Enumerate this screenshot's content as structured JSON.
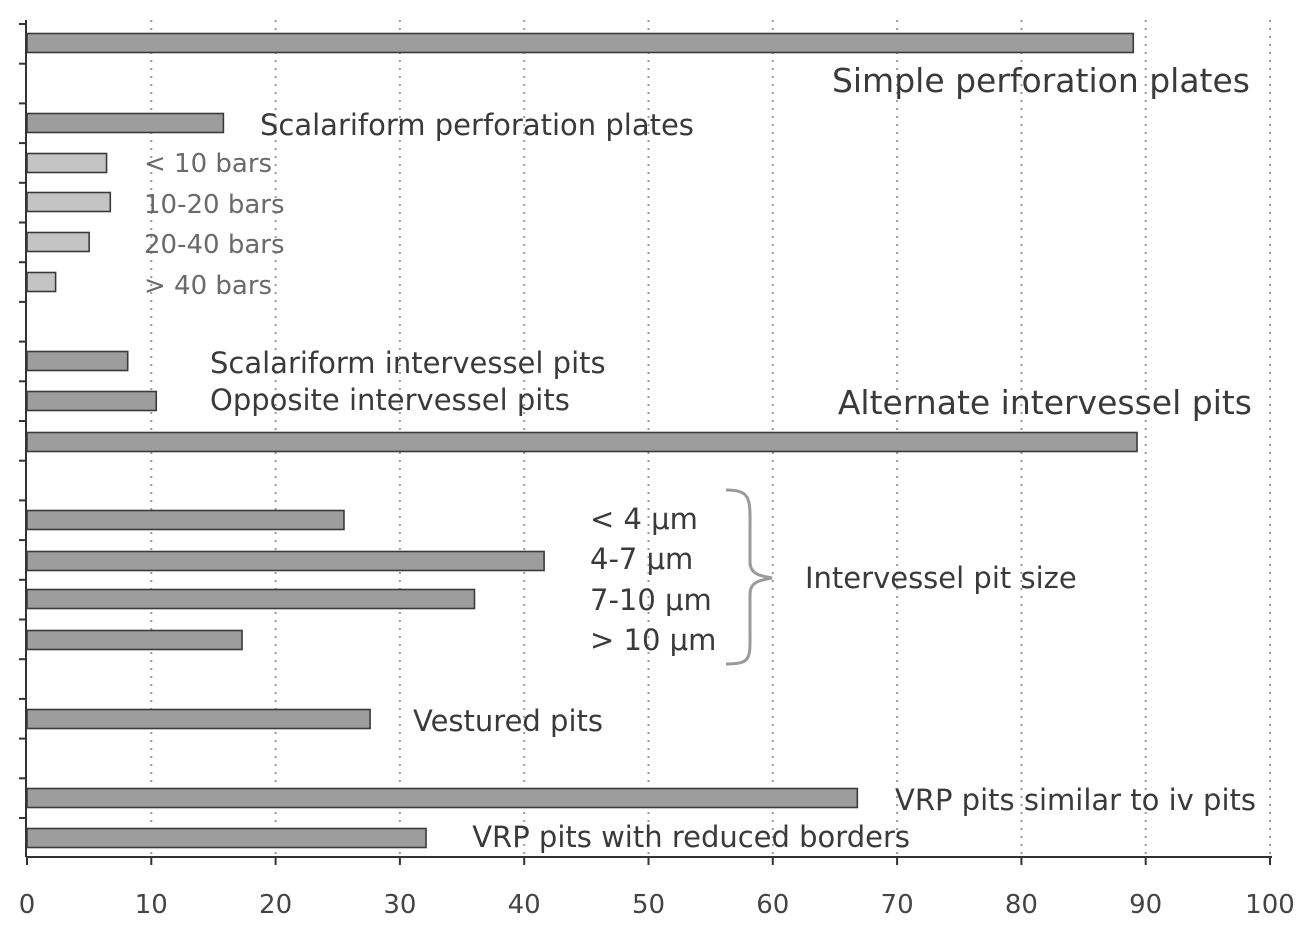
{
  "chart_data": {
    "type": "bar",
    "orientation": "horizontal",
    "xlim": [
      0,
      100
    ],
    "x_ticks": [
      0,
      10,
      20,
      30,
      40,
      50,
      60,
      70,
      80,
      90,
      100
    ],
    "grid": "vertical dotted lines at each x tick",
    "bars": [
      {
        "label": "Simple perforation plates",
        "value": 89,
        "style": "dark",
        "label_size": "big"
      },
      {
        "label": "Scalariform perforation plates",
        "value": 15.8,
        "style": "dark",
        "label_size": "mid"
      },
      {
        "label": "< 10 bars",
        "value": 6.4,
        "style": "light",
        "label_size": "small"
      },
      {
        "label": "10-20 bars",
        "value": 6.7,
        "style": "light",
        "label_size": "small"
      },
      {
        "label": "20-40 bars",
        "value": 5.0,
        "style": "light",
        "label_size": "small"
      },
      {
        "label": "> 40 bars",
        "value": 2.3,
        "style": "light",
        "label_size": "small"
      },
      {
        "label": "Scalariform intervessel pits",
        "value": 8.1,
        "style": "dark",
        "label_size": "mid"
      },
      {
        "label": "Opposite intervessel pits",
        "value": 10.4,
        "style": "dark",
        "label_size": "mid"
      },
      {
        "label": "Alternate intervessel pits",
        "value": 89.3,
        "style": "dark",
        "label_size": "big"
      },
      {
        "label": "< 4 μm",
        "value": 25.5,
        "style": "dark",
        "label_size": "mid"
      },
      {
        "label": "4-7 μm",
        "value": 41.6,
        "style": "dark",
        "label_size": "mid"
      },
      {
        "label": "7-10 μm",
        "value": 36.0,
        "style": "dark",
        "label_size": "mid"
      },
      {
        "label": "> 10 μm",
        "value": 17.3,
        "style": "dark",
        "label_size": "mid"
      },
      {
        "label": "Vestured pits",
        "value": 27.6,
        "style": "dark",
        "label_size": "mid"
      },
      {
        "label": "VRP pits similar to iv pits",
        "value": 66.8,
        "style": "dark",
        "label_size": "mid"
      },
      {
        "label": "VRP pits with reduced borders",
        "value": 32.1,
        "style": "dark",
        "label_size": "mid"
      }
    ],
    "annotations": [
      {
        "text": "Intervessel pit size",
        "brace_over": [
          "< 4 μm",
          "4-7 μm",
          "7-10 μm",
          "> 10 μm"
        ]
      }
    ]
  }
}
